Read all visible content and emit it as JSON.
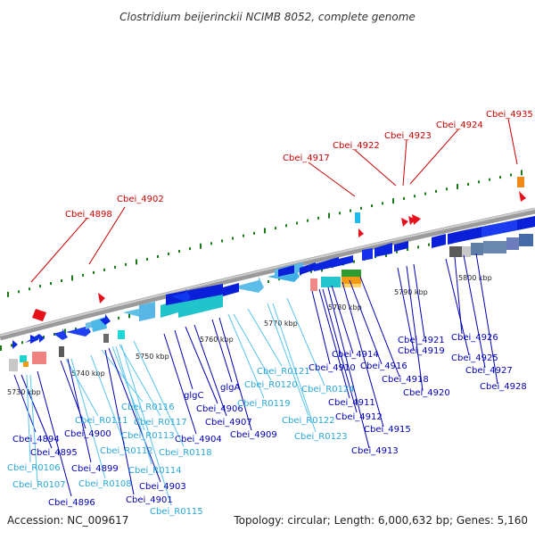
{
  "title": "Clostridium beijerinckii NCIMB 8052, complete genome",
  "footer": {
    "accession": "Accession: NC_009617",
    "summary": "Topology: circular; Length: 6,000,632 bp; Genes: 5,160"
  },
  "colors": {
    "red_label": "#cc0000",
    "blue_label": "#0000b4",
    "cyan_label": "#2aa7d6",
    "backbone": "#8a8a8a",
    "tick_green": "#1a7a1a"
  },
  "scale_labels": [
    "5730 kbp",
    "5740 kbp",
    "5750 kbp",
    "5760 kbp",
    "5770 kbp",
    "5780 kbp",
    "5790 kbp",
    "5800 kbp"
  ],
  "top_labels": [
    "Cbei_4898",
    "Cbei_4902",
    "Cbei_4917",
    "Cbei_4922",
    "Cbei_4923",
    "Cbei_4924",
    "Cbei_4935"
  ],
  "bottom_labels": [
    "Cbei_4894",
    "Cbei_4895",
    "Cbei_R0106",
    "Cbei_R0107",
    "Cbei_4896",
    "Cbei_4900",
    "Cbei_R0111",
    "Cbei_4899",
    "Cbei_R0108",
    "Cbei_R0112",
    "Cbei_R0116",
    "Cbei_4901",
    "Cbei_4903",
    "Cbei_R0113",
    "Cbei_R0114",
    "Cbei_R0117",
    "Cbei_R0115",
    "Cbei_R0118",
    "Cbei_4904",
    "glgC",
    "Cbei_4906",
    "Cbei_4907",
    "glgA",
    "Cbei_4909",
    "Cbei_R0119",
    "Cbei_R0120",
    "Cbei_R0121",
    "Cbei_R0122",
    "Cbei_R0123",
    "Cbei_R0124",
    "Cbei_4910",
    "Cbei_4911",
    "Cbei_4912",
    "Cbei_4913",
    "Cbei_4914",
    "Cbei_4915",
    "Cbei_4916",
    "Cbei_4918",
    "Cbei_4919",
    "Cbei_4920",
    "Cbei_4921",
    "Cbei_4925",
    "Cbei_4926",
    "Cbei_4927",
    "Cbei_4928"
  ]
}
